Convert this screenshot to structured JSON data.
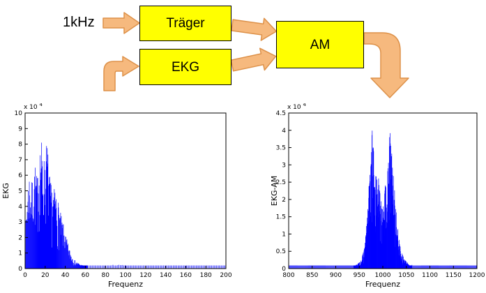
{
  "diagram": {
    "input_label": "1kHz",
    "blocks": {
      "traeger": "Träger",
      "ekg": "EKG",
      "am": "AM"
    },
    "colors": {
      "block_fill": "#FFFF00",
      "block_border": "#000000",
      "arrow_fill": "#F6B97E",
      "arrow_stroke": "#DD9149"
    }
  },
  "chart_data": [
    {
      "type": "line",
      "title": "",
      "xlabel": "Frequenz",
      "ylabel": "EKG",
      "xlim": [
        0,
        200
      ],
      "ylim": [
        0,
        10
      ],
      "y_exponent": {
        "base": "x 10",
        "sup": "4"
      },
      "x_ticks": [
        0,
        20,
        40,
        60,
        80,
        100,
        120,
        140,
        160,
        180,
        200
      ],
      "y_ticks": [
        0,
        1,
        2,
        3,
        4,
        5,
        6,
        7,
        8,
        9,
        10
      ],
      "line_color": "#0000FF",
      "axis_color": "#000000",
      "grid": false,
      "legend": null,
      "noise_seed": 7,
      "envelope": [
        [
          0,
          2.2
        ],
        [
          2,
          4.8
        ],
        [
          4,
          6.3
        ],
        [
          6,
          5.4
        ],
        [
          8,
          6.0
        ],
        [
          10,
          6.8
        ],
        [
          12,
          5.8
        ],
        [
          14,
          7.4
        ],
        [
          16,
          8.7
        ],
        [
          18,
          6.8
        ],
        [
          20,
          7.6
        ],
        [
          22,
          8.4
        ],
        [
          24,
          6.2
        ],
        [
          26,
          5.4
        ],
        [
          28,
          5.0
        ],
        [
          30,
          5.3
        ],
        [
          32,
          4.6
        ],
        [
          34,
          4.0
        ],
        [
          36,
          3.4
        ],
        [
          38,
          2.9
        ],
        [
          40,
          2.3
        ],
        [
          42,
          1.8
        ],
        [
          44,
          1.3
        ],
        [
          46,
          0.95
        ],
        [
          48,
          0.7
        ],
        [
          50,
          0.5
        ],
        [
          55,
          0.28
        ],
        [
          60,
          0.16
        ],
        [
          70,
          0.12
        ],
        [
          80,
          0.2
        ],
        [
          90,
          0.26
        ],
        [
          100,
          0.22
        ],
        [
          110,
          0.14
        ],
        [
          120,
          0.07
        ],
        [
          140,
          0.05
        ],
        [
          160,
          0.05
        ],
        [
          180,
          0.05
        ],
        [
          200,
          0.04
        ]
      ]
    },
    {
      "type": "line",
      "title": "",
      "xlabel": "Frequenz",
      "ylabel": "EKG-AM",
      "xlim": [
        800,
        1200
      ],
      "ylim": [
        0,
        4.5
      ],
      "y_exponent": {
        "base": "x 10",
        "sup": "4"
      },
      "x_ticks": [
        800,
        850,
        900,
        950,
        1000,
        1050,
        1100,
        1150,
        1200
      ],
      "y_ticks": [
        0,
        0.5,
        1,
        1.5,
        2,
        2.5,
        3,
        3.5,
        4,
        4.5
      ],
      "line_color": "#0000FF",
      "axis_color": "#000000",
      "grid": false,
      "legend": null,
      "noise_seed": 13,
      "envelope": [
        [
          800,
          0.04
        ],
        [
          860,
          0.05
        ],
        [
          900,
          0.05
        ],
        [
          930,
          0.07
        ],
        [
          942,
          0.1
        ],
        [
          950,
          0.18
        ],
        [
          956,
          0.32
        ],
        [
          962,
          0.75
        ],
        [
          966,
          1.4
        ],
        [
          970,
          2.3
        ],
        [
          974,
          3.3
        ],
        [
          978,
          4.35
        ],
        [
          981,
          3.3
        ],
        [
          984,
          2.6
        ],
        [
          988,
          3.0
        ],
        [
          992,
          2.5
        ],
        [
          996,
          2.2
        ],
        [
          1000,
          2.1
        ],
        [
          1004,
          2.35
        ],
        [
          1008,
          2.6
        ],
        [
          1012,
          3.1
        ],
        [
          1016,
          4.3
        ],
        [
          1019,
          3.5
        ],
        [
          1023,
          2.7
        ],
        [
          1027,
          1.9
        ],
        [
          1031,
          1.25
        ],
        [
          1035,
          0.85
        ],
        [
          1039,
          0.55
        ],
        [
          1044,
          0.35
        ],
        [
          1050,
          0.2
        ],
        [
          1058,
          0.12
        ],
        [
          1070,
          0.08
        ],
        [
          1090,
          0.06
        ],
        [
          1120,
          0.05
        ],
        [
          1160,
          0.05
        ],
        [
          1200,
          0.04
        ]
      ]
    }
  ]
}
